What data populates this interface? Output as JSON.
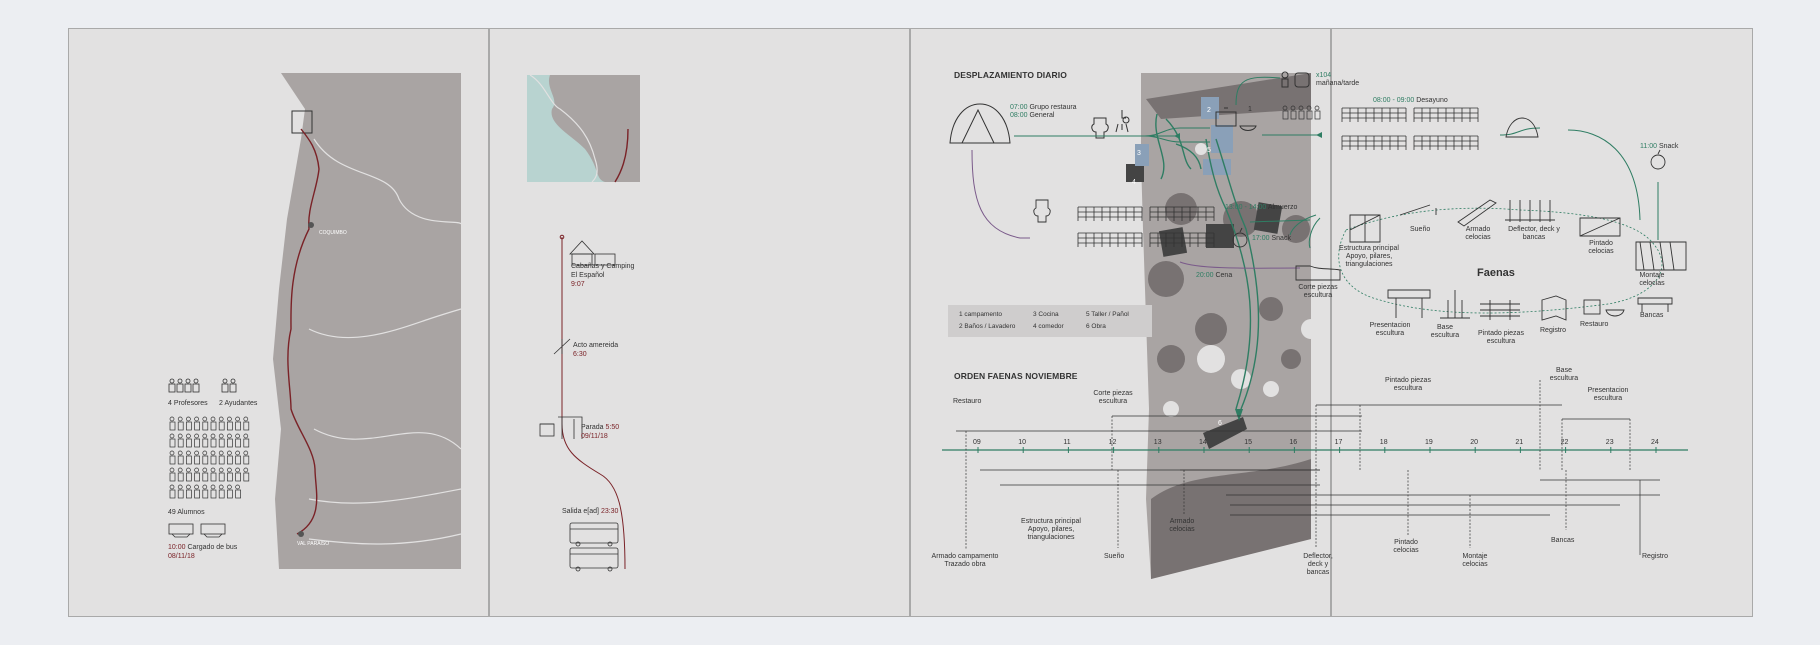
{
  "panel1": {
    "profesores": "4 Profesores",
    "ayudantes": "2 Ayudantes",
    "alumnos": "49 Alumnos",
    "bus_time": "10:00",
    "bus_label": "Cargado de bus",
    "bus_date": "08/11/18",
    "city_north": "COQUIMBO",
    "city_south": "VAL PARAISO"
  },
  "panel2": {
    "stop1_title": "Cabañas y Camping",
    "stop1_sub": "El Español",
    "stop1_time": "9:07",
    "stop2_title": "Acto amereida",
    "stop2_time": "6:30",
    "stop3_title": "Parada",
    "stop3_time": "5:50",
    "stop3_date": "09/11/18",
    "stop4_title": "Salida e[ad]",
    "stop4_time": "23:30"
  },
  "panel3": {
    "zones": [
      "1",
      "2",
      "3",
      "4",
      "5",
      "6"
    ]
  },
  "daily": {
    "title": "DESPLAZAMIENTO DIARIO",
    "t1": "07:00",
    "l1": "Grupo restaura",
    "t2": "08:00",
    "l2": "General",
    "x104": "x104",
    "manana": "mañana/tarde",
    "desayuno_time": "08:00 - 09:00",
    "desayuno": "Desayuno",
    "snack1_time": "11:00",
    "snack1": "Snack",
    "almuerzo_time": "13:00 - 14:00",
    "almuerzo": "Almuerzo",
    "snack2_time": "17:00",
    "snack2": "Snack",
    "cena_time": "20:00",
    "cena": "Cena",
    "legend": [
      "1 campamento",
      "3 Cocina",
      "5 Taller / Pañol",
      "2 Baños / Lavadero",
      "4 comedor",
      "6 Obra"
    ]
  },
  "faenas": {
    "title": "Faenas",
    "items": [
      "Sueño",
      "Armado celocias",
      "Deflector, deck y bancas",
      "Pintado celocias",
      "Montaje celocias",
      "Estructura principal Apoyo, pilares, triangulaciones",
      "Corte piezas escultura",
      "Presentacion escultura",
      "Base escultura",
      "Pintado piezas escultura",
      "Registro",
      "Restauro",
      "Bancas"
    ]
  },
  "orden": {
    "title": "ORDEN FAENAS NOVIEMBRE",
    "days": [
      "09",
      "10",
      "11",
      "12",
      "13",
      "14",
      "15",
      "16",
      "17",
      "18",
      "19",
      "20",
      "21",
      "22",
      "23",
      "24"
    ],
    "top_labels": {
      "restauro": "Restauro",
      "corte": "Corte piezas escultura",
      "pintado_esc": "Pintado piezas escultura",
      "base": "Base escultura",
      "presentacion": "Presentacion escultura"
    },
    "bottom_labels": {
      "armado_camp": "Armado campamento Trazado obra",
      "estructura": "Estructura principal Apoyo, pilares, triangulaciones",
      "sueno": "Sueño",
      "armado_cel": "Armado celocias",
      "deflector": "Deflector, deck y bancas",
      "pintado_cel": "Pintado celocias",
      "montaje": "Montaje celocias",
      "bancas": "Bancas",
      "registro": "Registro"
    }
  },
  "colors": {
    "accent": "#2f7d63",
    "route": "#7a2227",
    "panel": "#e2e1e1",
    "map": "#a9a4a3"
  }
}
